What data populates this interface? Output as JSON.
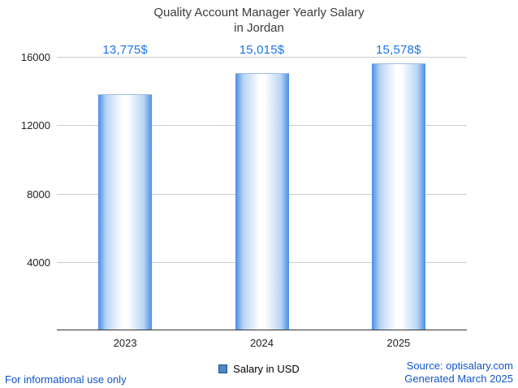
{
  "title": {
    "line1": "Quality Account Manager Yearly Salary",
    "line2": "in Jordan"
  },
  "chart_data": {
    "type": "bar",
    "title": "Quality Account Manager Yearly Salary in Jordan",
    "categories": [
      "2023",
      "2024",
      "2025"
    ],
    "series": [
      {
        "name": "Salary in USD",
        "values": [
          13775,
          15015,
          15578
        ]
      }
    ],
    "value_labels": [
      "13,775$",
      "15,015$",
      "15,578$"
    ],
    "xlabel": "",
    "ylabel": "",
    "ylim": [
      0,
      16000
    ],
    "yticks": [
      4000,
      8000,
      12000,
      16000
    ],
    "grid": true,
    "legend_position": "bottom-center"
  },
  "legend": {
    "label": "Salary in USD"
  },
  "footer": {
    "left": "For informational use only",
    "source": "Source: optisalary.com",
    "generated": "Generated March 2025"
  },
  "colors": {
    "label_blue": "#1a73e8",
    "link_blue": "#1155cc",
    "bar_edge": "#4a8fe2",
    "grid": "#cccccc",
    "axis": "#333333",
    "legend_fill": "#4a86c8",
    "legend_border": "#24508c",
    "title_color": "#3b3b3b",
    "tick_color": "#222222"
  }
}
